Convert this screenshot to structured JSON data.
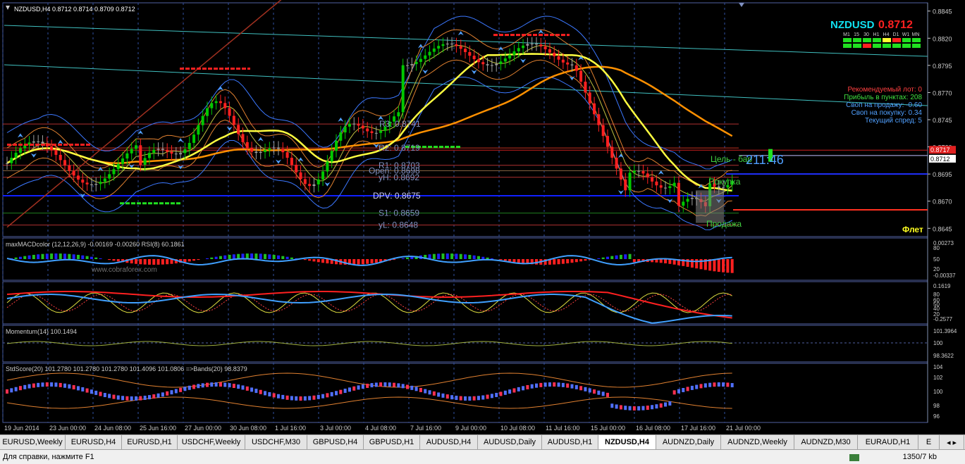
{
  "header": {
    "symbol_tf": "NZDUSD,H4",
    "ohlc": "0.8712 0.8714 0.8709 0.8712"
  },
  "panel": {
    "symbol": "NZDUSD",
    "price": "0.8712",
    "timeframes": [
      "M1",
      "15",
      "30",
      "H1",
      "H4",
      "D1",
      "W1",
      "MN"
    ],
    "info": [
      "Рекомендуемый лот: 0",
      "Прибыль в пунктах: 208",
      "Своп на продажу: -0.60",
      "Своп на покупку: 0.34",
      "Текущий спред: 5"
    ]
  },
  "pivots": {
    "r3": "R3: 0.8741",
    "r2": "R2: 0.8719",
    "r1": "R1: 0.8703",
    "open": "Open: 0.8698",
    "yh": "yH: 0.8692",
    "dpv": "DPV: 0.8675",
    "s1": "S1: 0.8659",
    "yl": "yL: 0.8648"
  },
  "signals": {
    "target": "Цель - бар",
    "countdown": "211:46",
    "buy": "Покупка",
    "sell": "Продажа",
    "flat": "Флет"
  },
  "main_axis": {
    "ticks": [
      "0.8845",
      "0.8820",
      "0.8795",
      "0.8770",
      "0.8745",
      "0.8720",
      "0.8695",
      "0.8670",
      "0.8645"
    ],
    "badge_red": "0.8717",
    "badge_cur": "0.8712"
  },
  "macd": {
    "label": "maxMACDcolor (12,12,26,9) -0.00169 -0.00260  RSI(8) 60.1861",
    "watermark": "www.cobraforex.com",
    "ticks": [
      "0.00273",
      "80",
      "50",
      "20",
      "-0.00337"
    ]
  },
  "stoch": {
    "ticks": [
      "0.1619",
      "80",
      "60",
      "50",
      "40",
      "20",
      "-0.2577"
    ]
  },
  "momentum": {
    "label": "Momentum(14) 100.1494",
    "ticks": [
      "101.3964",
      "100",
      "98.3622"
    ]
  },
  "stdscore": {
    "label": "StdScore(20) 101.2780 101.2780 101.2780 101.4096 101.0806 =>Bands(20) 98.8379",
    "ticks": [
      "104",
      "102",
      "100",
      "98",
      "96"
    ]
  },
  "time_axis": [
    "19 Jun 2014",
    "23 Jun 00:00",
    "24 Jun 08:00",
    "25 Jun 16:00",
    "27 Jun 00:00",
    "30 Jun 08:00",
    "1 Jul 16:00",
    "3 Jul 00:00",
    "4 Jul 08:00",
    "7 Jul 16:00",
    "9 Jul 00:00",
    "10 Jul 08:00",
    "11 Jul 16:00",
    "15 Jul 00:00",
    "16 Jul 08:00",
    "17 Jul 16:00",
    "21 Jul 00:00"
  ],
  "tabs": [
    "EURUSD,Weekly",
    "EURUSD,H4",
    "EURUSD,H1",
    "USDCHF,Weekly",
    "USDCHF,M30",
    "GBPUSD,H4",
    "GBPUSD,H1",
    "AUDUSD,H4",
    "AUDUSD,Daily",
    "AUDUSD,H1",
    "NZDUSD,H4",
    "AUDNZD,Daily",
    "AUDNZD,Weekly",
    "AUDNZD,M30",
    "EURAUD,H1",
    "E"
  ],
  "active_tab": "NZDUSD,H4",
  "status": {
    "help": "Для справки, нажмите F1",
    "traffic": "1350/7 kb"
  },
  "colors": {
    "bull": "#00c800",
    "bear": "#ff2020",
    "doji": "#a0a0a0",
    "ma_yellow": "#ffff40",
    "ma_orange": "#ff9000",
    "bands": "#3c78ff",
    "grid": "#3050a0"
  }
}
